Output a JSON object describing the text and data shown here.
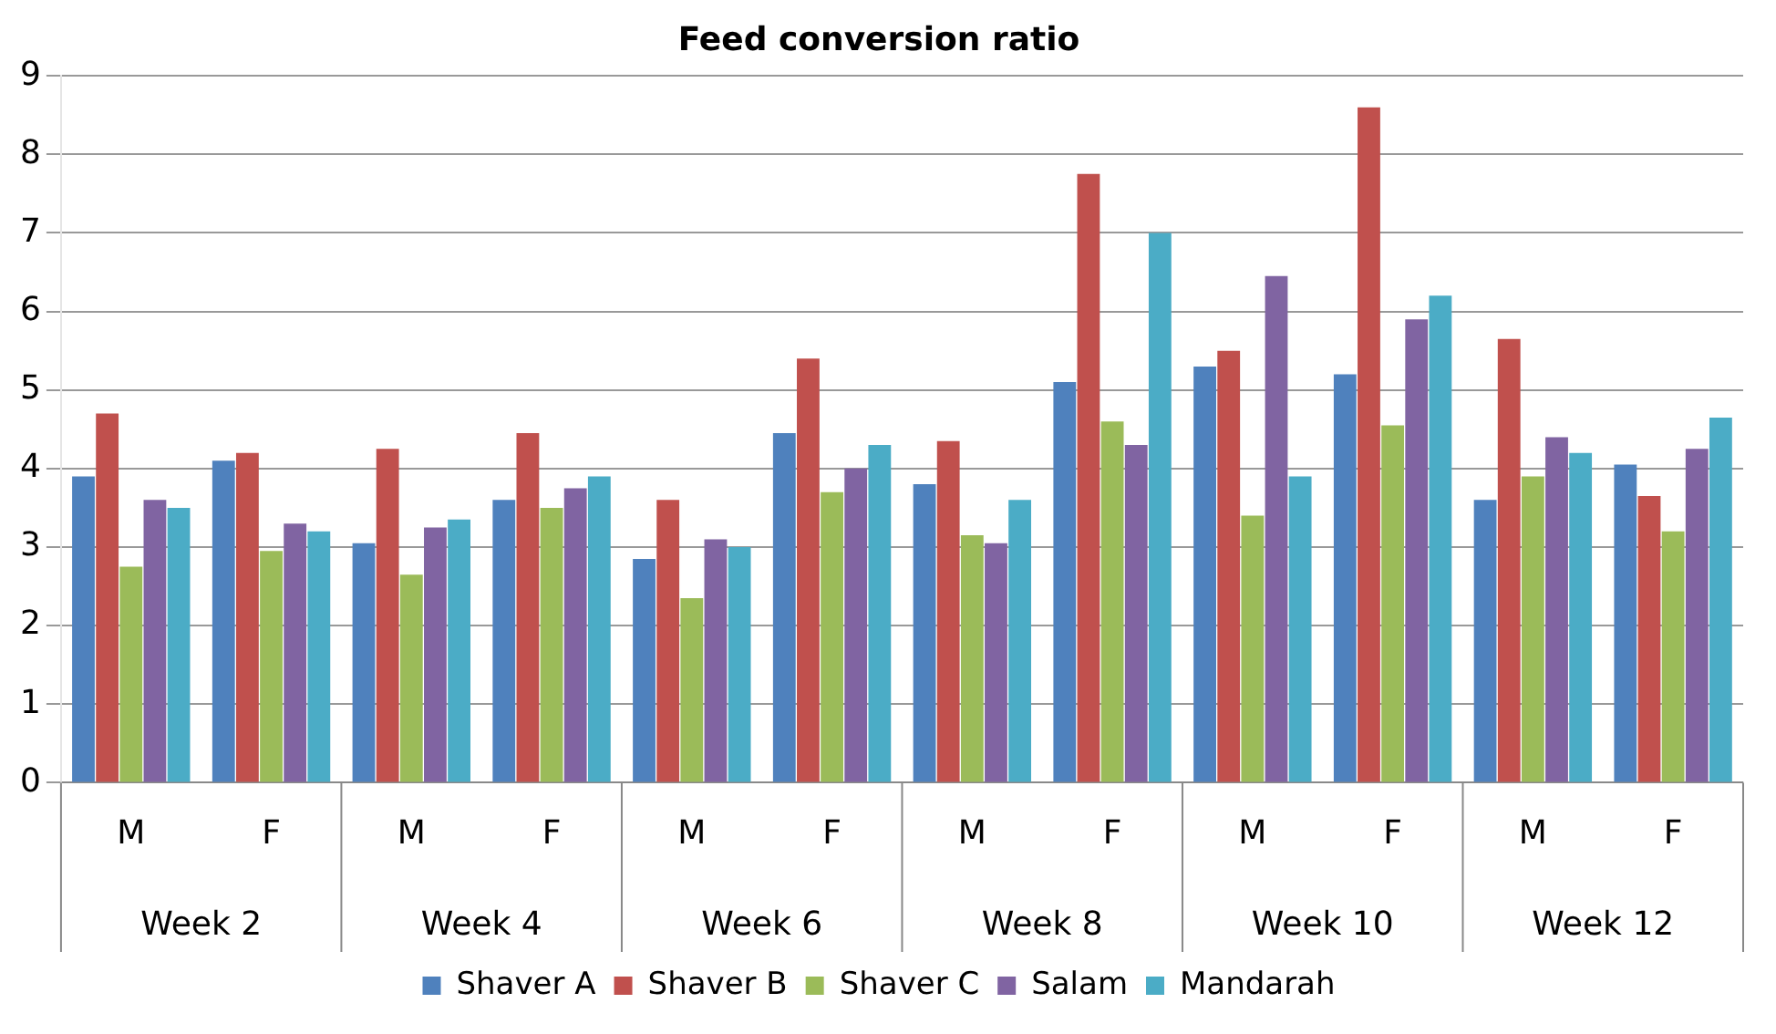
{
  "chart_data": {
    "type": "bar",
    "title": "Feed conversion ratio",
    "categories": [
      "M",
      "F",
      "M",
      "F",
      "M",
      "F",
      "M",
      "F",
      "M",
      "F",
      "M",
      "F"
    ],
    "annotations": [
      "Week 2",
      "Week 4",
      "Week 6",
      "Week 8",
      "Week 10",
      "Week 12"
    ],
    "series": [
      {
        "name": "Shaver A",
        "color": "#4f81bd",
        "values": [
          3.9,
          4.1,
          3.05,
          3.6,
          2.85,
          4.45,
          3.8,
          5.1,
          5.3,
          5.2,
          3.6,
          4.05
        ]
      },
      {
        "name": "Shaver B",
        "color": "#c0504d",
        "values": [
          4.7,
          4.2,
          4.25,
          4.45,
          3.6,
          5.4,
          4.35,
          7.75,
          5.5,
          8.6,
          5.65,
          3.65
        ]
      },
      {
        "name": "Shaver C",
        "color": "#9bbb59",
        "values": [
          2.75,
          2.95,
          2.65,
          3.5,
          2.35,
          3.7,
          3.15,
          4.6,
          3.4,
          4.55,
          3.9,
          3.2
        ]
      },
      {
        "name": "Salam",
        "color": "#8064a2",
        "values": [
          3.6,
          3.3,
          3.25,
          3.75,
          3.1,
          4.0,
          3.05,
          4.3,
          6.45,
          5.9,
          4.4,
          4.25
        ]
      },
      {
        "name": "Mandarah",
        "color": "#4bacc6",
        "values": [
          3.5,
          3.2,
          3.35,
          3.9,
          3.0,
          4.3,
          3.6,
          7.0,
          3.9,
          6.2,
          4.2,
          4.65
        ]
      }
    ],
    "ylim": [
      0,
      9
    ],
    "yticks": [
      0,
      1,
      2,
      3,
      4,
      5,
      6,
      7,
      8,
      9
    ],
    "grid": "y",
    "legend": "bottom"
  }
}
